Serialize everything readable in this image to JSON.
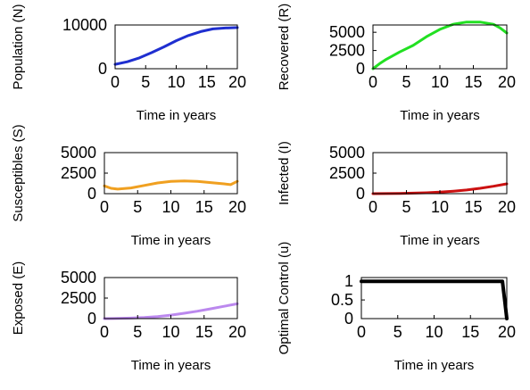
{
  "chart_data": [
    {
      "type": "line",
      "xlabel": "Time in years",
      "ylabel": "Population (N)",
      "xlim": [
        0,
        20
      ],
      "ylim": [
        0,
        10000
      ],
      "xticks": [
        "0",
        "5",
        "10",
        "15",
        "20"
      ],
      "yticks": [
        "0",
        "10000"
      ],
      "grid": false,
      "series": [
        {
          "color": "#1f2fd0",
          "x": [
            0,
            2,
            4,
            6,
            8,
            10,
            12,
            14,
            16,
            18,
            20
          ],
          "y": [
            1000,
            1600,
            2500,
            3700,
            5000,
            6400,
            7600,
            8500,
            9100,
            9300,
            9400
          ]
        }
      ]
    },
    {
      "type": "line",
      "xlabel": "Time in years",
      "ylabel": "Recovered (R)",
      "xlim": [
        0,
        20
      ],
      "ylim": [
        0,
        6000
      ],
      "xticks": [
        "0",
        "5",
        "10",
        "15",
        "20"
      ],
      "yticks": [
        "0",
        "2500",
        "5000"
      ],
      "grid": false,
      "series": [
        {
          "color": "#22e022",
          "x": [
            0,
            1,
            2,
            4,
            6,
            8,
            10,
            12,
            14,
            16,
            18,
            19,
            20
          ],
          "y": [
            0,
            700,
            1300,
            2300,
            3200,
            4400,
            5400,
            6100,
            6400,
            6400,
            6100,
            5600,
            4900
          ]
        }
      ]
    },
    {
      "type": "line",
      "xlabel": "Time in years",
      "ylabel": "Susceptibles (S)",
      "xlim": [
        0,
        20
      ],
      "ylim": [
        0,
        5000
      ],
      "xticks": [
        "0",
        "5",
        "10",
        "15",
        "20"
      ],
      "yticks": [
        "0",
        "2500",
        "5000"
      ],
      "grid": false,
      "series": [
        {
          "color": "#f0a020",
          "x": [
            0,
            1,
            2,
            4,
            6,
            8,
            10,
            12,
            14,
            16,
            18,
            19,
            20
          ],
          "y": [
            950,
            650,
            550,
            700,
            1000,
            1300,
            1500,
            1550,
            1500,
            1350,
            1200,
            1100,
            1500
          ]
        }
      ]
    },
    {
      "type": "line",
      "xlabel": "Time in years",
      "ylabel": "Infected (I)",
      "xlim": [
        0,
        20
      ],
      "ylim": [
        0,
        5000
      ],
      "xticks": [
        "0",
        "5",
        "10",
        "15",
        "20"
      ],
      "yticks": [
        "0",
        "2500",
        "5000"
      ],
      "grid": false,
      "series": [
        {
          "color": "#cc1111",
          "x": [
            0,
            2,
            4,
            6,
            8,
            10,
            12,
            14,
            16,
            18,
            20
          ],
          "y": [
            0,
            10,
            30,
            60,
            110,
            190,
            300,
            450,
            650,
            900,
            1200
          ]
        }
      ]
    },
    {
      "type": "line",
      "xlabel": "Time in years",
      "ylabel": "Exposed (E)",
      "xlim": [
        0,
        20
      ],
      "ylim": [
        0,
        5000
      ],
      "xticks": [
        "0",
        "5",
        "10",
        "15",
        "20"
      ],
      "yticks": [
        "0",
        "2500",
        "5000"
      ],
      "grid": false,
      "series": [
        {
          "color": "#bb88ee",
          "x": [
            0,
            2,
            4,
            6,
            8,
            10,
            12,
            14,
            16,
            18,
            20
          ],
          "y": [
            0,
            20,
            60,
            130,
            250,
            420,
            650,
            900,
            1200,
            1500,
            1800
          ]
        }
      ]
    },
    {
      "type": "line",
      "xlabel": "Time in years",
      "ylabel": "Optimal Control (u)",
      "xlim": [
        0,
        20
      ],
      "ylim": [
        0,
        1.1
      ],
      "xticks": [
        "0",
        "5",
        "10",
        "15",
        "20"
      ],
      "yticks": [
        "0",
        "0.5",
        "1"
      ],
      "grid": false,
      "series": [
        {
          "color": "#000000",
          "x": [
            0,
            19,
            19.4,
            19.7,
            20
          ],
          "y": [
            1,
            1,
            1,
            0.5,
            0
          ]
        }
      ]
    }
  ]
}
